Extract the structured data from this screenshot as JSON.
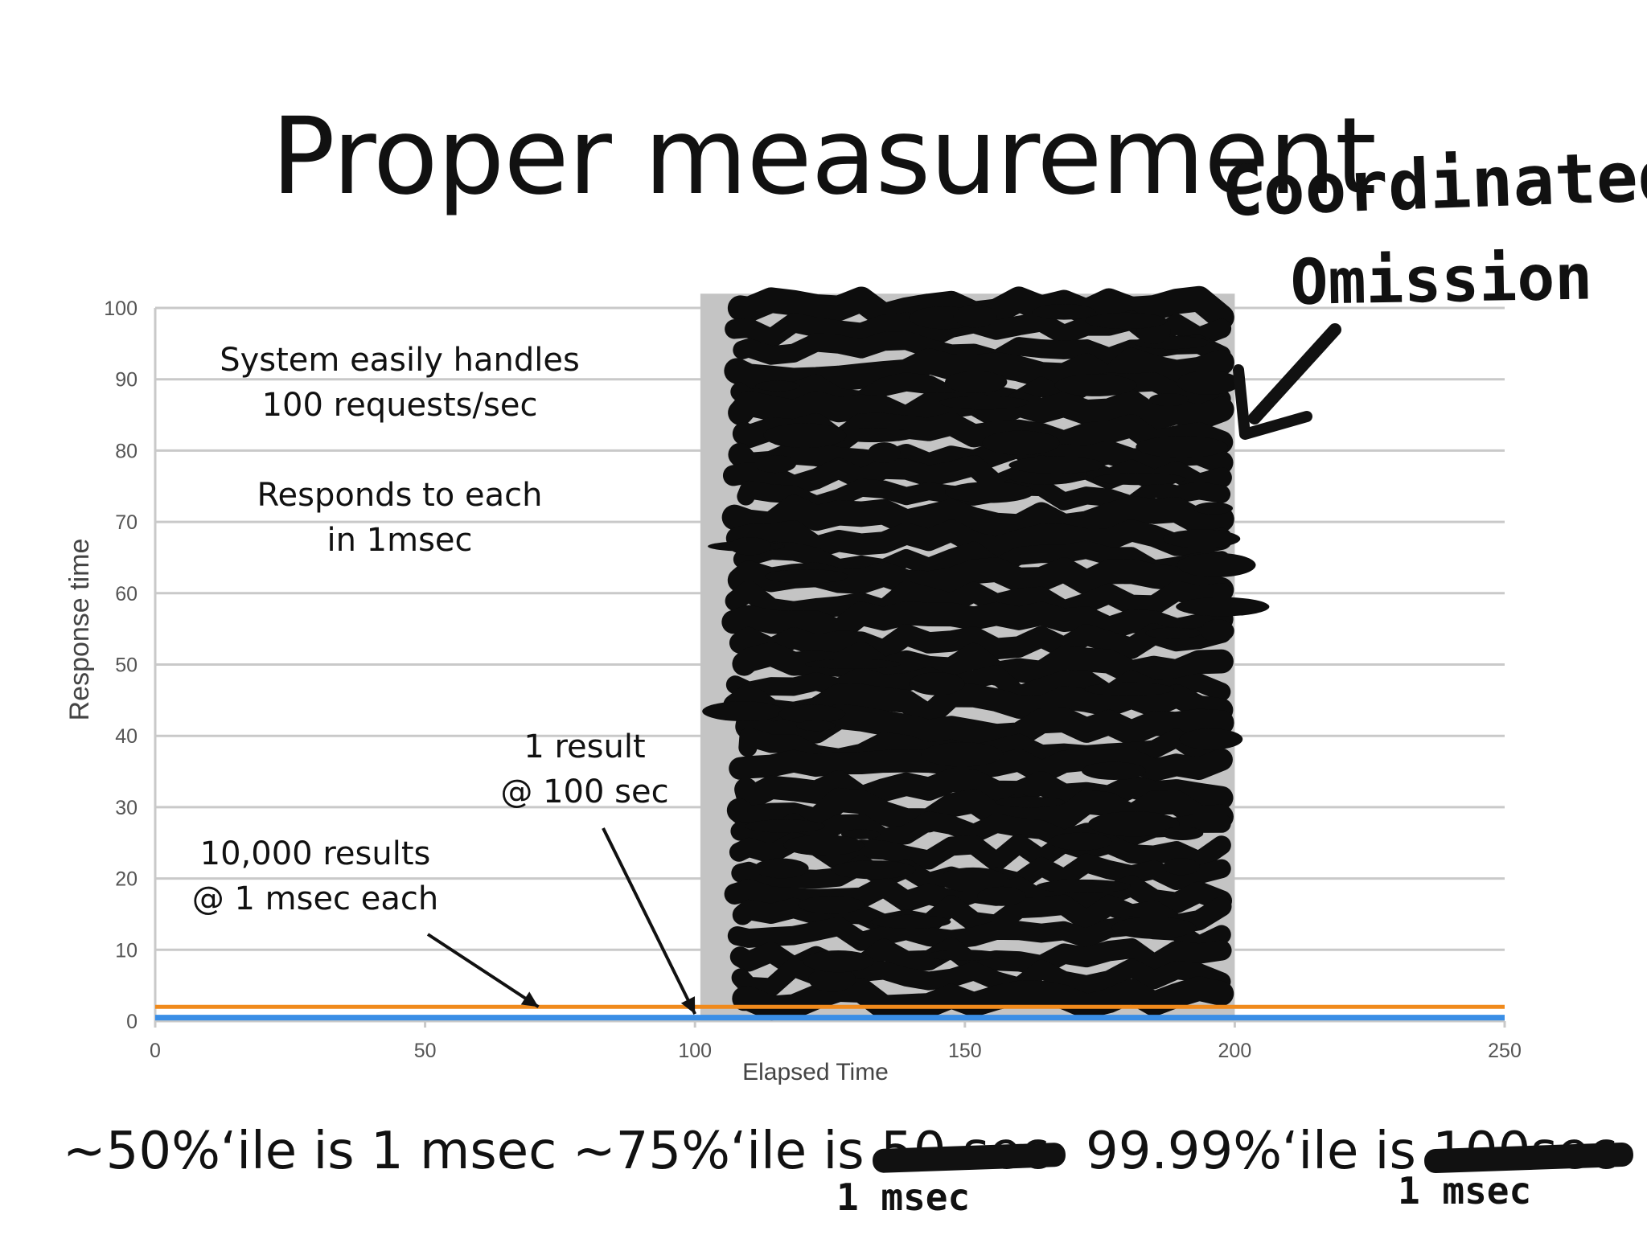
{
  "slide": {
    "title": "Proper measurement"
  },
  "chart_data": {
    "type": "line",
    "xlabel": "Elapsed Time",
    "ylabel": "Response time",
    "xlim": [
      0,
      250
    ],
    "ylim": [
      0,
      100
    ],
    "xticks": [
      0,
      50,
      100,
      150,
      200,
      250
    ],
    "yticks": [
      0,
      10,
      20,
      30,
      40,
      50,
      60,
      70,
      80,
      90,
      100
    ],
    "grid": true,
    "series": [
      {
        "color": "#f08a1c",
        "x": [
          0,
          250
        ],
        "y": [
          2,
          2
        ]
      },
      {
        "color": "#3a8ee6",
        "x": [
          0,
          250
        ],
        "y": [
          0.5,
          0.5
        ]
      }
    ],
    "shaded_region": {
      "x": [
        101,
        200
      ],
      "y": [
        0,
        102
      ],
      "color": "#c4c4c4"
    },
    "annotations": [
      {
        "lines": [
          "System easily handles",
          "100 requests/sec"
        ]
      },
      {
        "lines": [
          "Responds to each",
          "in 1msec"
        ]
      },
      {
        "lines": [
          "1 result",
          "@ 100 sec"
        ],
        "arrow_to": [
          100,
          1
        ]
      },
      {
        "lines": [
          "10,000 results",
          "@ 1 msec each"
        ],
        "arrow_to": [
          71,
          2
        ]
      }
    ]
  },
  "overlay": {
    "handwritten_lines": [
      "Coordinated",
      "Omission"
    ]
  },
  "footer": {
    "p50_text": "~50%‘ile is 1 msec",
    "p75_prefix": "~75%‘ile is ",
    "p75_struck": "50 sec",
    "p75_correction": "1 msec",
    "p9999_prefix": "99.99%‘ile is ",
    "p9999_struck": "100sec",
    "p9999_correction": "1 msec"
  }
}
